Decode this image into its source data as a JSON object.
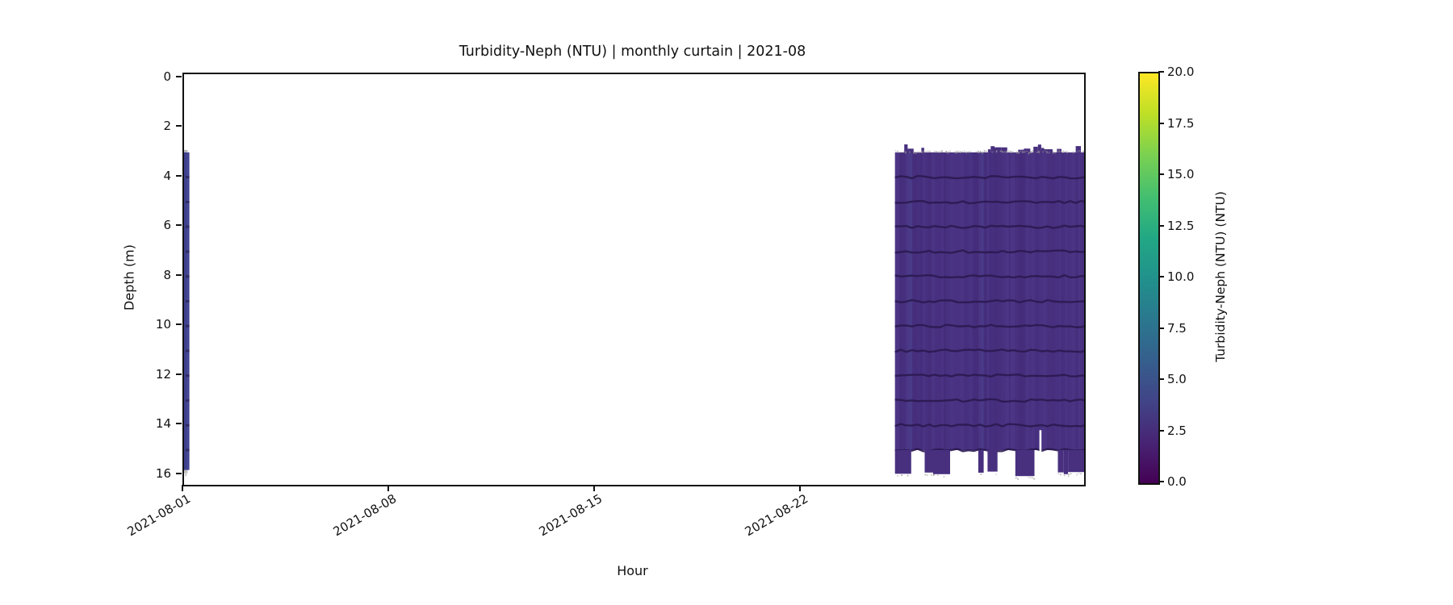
{
  "figure": {
    "title": "Turbidity-Neph (NTU) | monthly curtain | 2021-08",
    "background": "#ffffff"
  },
  "axes": {
    "xlabel": "Hour",
    "ylabel": "Depth (m)",
    "x_tick_labels": [
      "2021-08-01",
      "2021-08-08",
      "2021-08-15",
      "2021-08-22"
    ],
    "y_tick_labels": [
      "0",
      "2",
      "4",
      "6",
      "8",
      "10",
      "12",
      "14",
      "16"
    ]
  },
  "colorbar": {
    "label": "Turbidity-Neph (NTU) (NTU)",
    "tick_labels": [
      "0.0",
      "2.5",
      "5.0",
      "7.5",
      "10.0",
      "12.5",
      "15.0",
      "17.5",
      "20.0"
    ],
    "min": 0.0,
    "max": 20.0,
    "colormap": "viridis"
  },
  "chart_data": {
    "type": "heatmap",
    "title": "Turbidity-Neph (NTU) | monthly curtain | 2021-08",
    "xlabel": "Hour",
    "ylabel": "Depth (m)",
    "x_axis": {
      "start_date": "2021-08-01",
      "tick_days": [
        0,
        7,
        14,
        21
      ],
      "axis_span_days": 30.6
    },
    "y_axis": {
      "ticks_m": [
        0,
        2,
        4,
        6,
        8,
        10,
        12,
        14,
        16
      ],
      "limits_m": [
        -0.15,
        16.4
      ],
      "inverted": true
    },
    "value_range_ntu": [
      0,
      20
    ],
    "legend_position": "right-colorbar",
    "grid": false,
    "segments": [
      {
        "name": "cast-2021-08-01",
        "day_start": 0.0,
        "day_end": 0.18,
        "depth_top_m": 3.0,
        "depth_bottom_m": 15.8,
        "approx_value_ntu": 2.5
      },
      {
        "name": "block-2021-08-25_to_31",
        "day_start": 24.17,
        "day_end": 30.6,
        "depth_top_m": 3.0,
        "depth_bottom_m": 15.0,
        "ragged_bottom_max_depth_m": 16.05,
        "approx_value_ntu": 1.8
      }
    ],
    "sensor_line_depths_m": [
      4,
      5,
      6,
      7,
      8,
      9,
      10,
      11,
      12,
      13,
      14,
      15
    ]
  },
  "colors": {
    "block_base": "#48307f",
    "block_streak_light": "#6a5fb5",
    "block_streak_dark": "#2e1b5e",
    "block_streak_blue": "#4f6ab0",
    "sensor_line": "#2b1a50",
    "strip_base": "#3f418e",
    "strip_mark": "#2b2355",
    "speckle_gray": "#9a9a9a",
    "spine": "#111111",
    "viridis_stops": [
      "#440154",
      "#482475",
      "#414487",
      "#355f8d",
      "#2a788e",
      "#21918c",
      "#22a884",
      "#44bf70",
      "#7ad151",
      "#bddf26",
      "#fde725"
    ]
  }
}
